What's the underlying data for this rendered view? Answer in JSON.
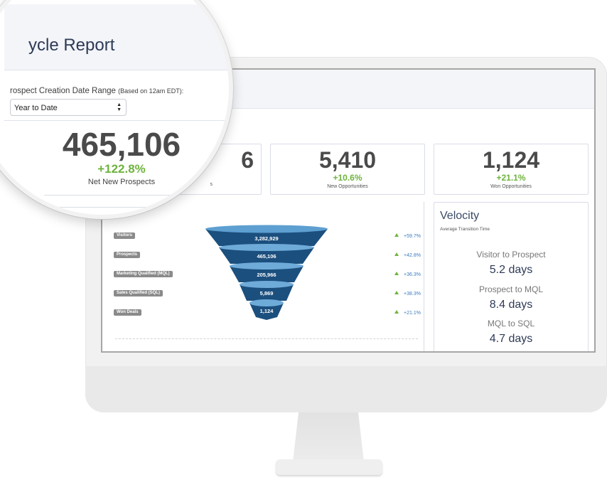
{
  "report": {
    "title": "ycle Report",
    "date_range_label": "rospect Creation Date Range",
    "date_range_note": "(Based on 12am EDT):",
    "date_range_value": "Year to Date"
  },
  "highlight": {
    "value": "465,106",
    "change": "+122.8%",
    "label": "Net New Prospects"
  },
  "metrics": [
    {
      "value": "5,410",
      "change": "+10.6%",
      "label": "New Opportunities"
    },
    {
      "value": "1,124",
      "change": "+21.1%",
      "label": "Won Opportunities"
    }
  ],
  "partial_metric": {
    "value_fragment": "6",
    "label_fragment": "s"
  },
  "funnel": {
    "stages": [
      {
        "label": "Visitors",
        "value": "3,282,929",
        "conversion": "+59.7%"
      },
      {
        "label": "Prospects",
        "value": "465,106",
        "conversion": "+42.8%"
      },
      {
        "label": "Marketing Qualified (MQL)",
        "value": "205,966",
        "conversion": "+36.3%"
      },
      {
        "label": "Sales Qualified (SQL)",
        "value": "5,869",
        "conversion": "+38.3%"
      },
      {
        "label": "Won Deals",
        "value": "1,124",
        "conversion": "+21.1%"
      }
    ],
    "colors": {
      "top": "#5d9fd1",
      "body": "#1b4f7e",
      "rim": "#7fb8e2"
    }
  },
  "velocity": {
    "title": "Velocity",
    "subtitle": "Average Transition Time",
    "items": [
      {
        "label": "Visitor to Prospect",
        "value": "5.2 days"
      },
      {
        "label": "Prospect to MQL",
        "value": "8.4 days"
      },
      {
        "label": "MQL to SQL",
        "value": "4.7 days"
      }
    ]
  },
  "colors": {
    "positive": "#6fb33e",
    "link": "#3b7bbf",
    "title": "#2e3a56"
  }
}
